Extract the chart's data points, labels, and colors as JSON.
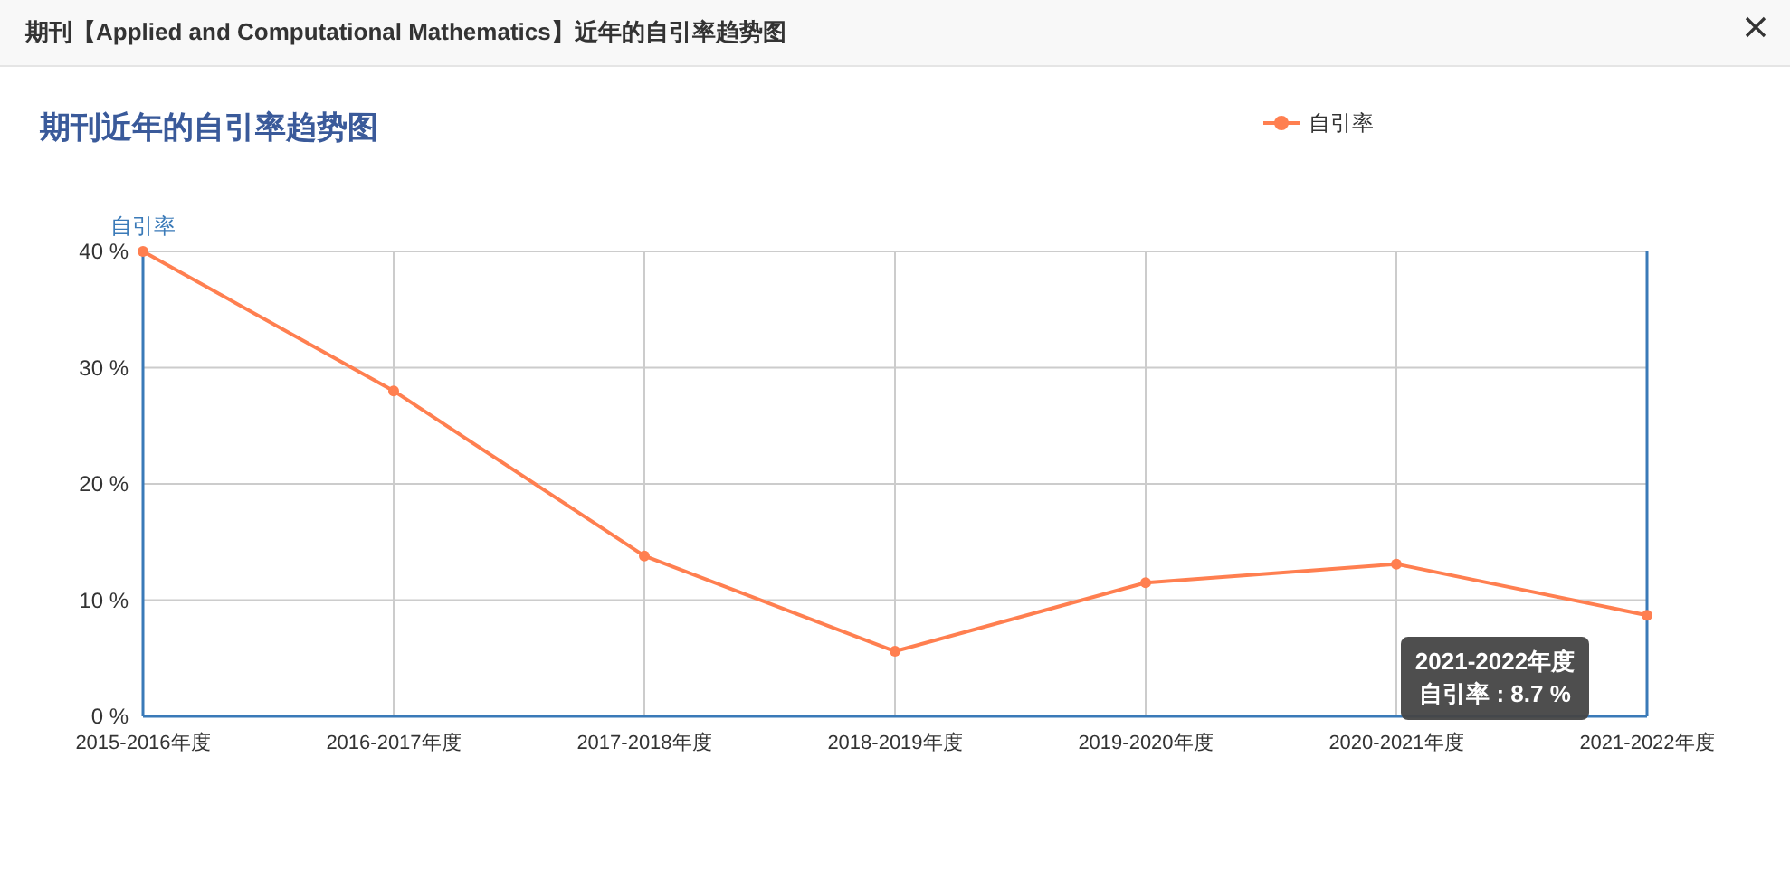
{
  "chart_data": {
    "type": "line",
    "title": "期刊【Applied and Computational Mathematics】近年的自引率趋势图",
    "subtitle": "期刊近年的自引率趋势图",
    "ylabel": "自引率",
    "categories": [
      "2015-2016年度",
      "2016-2017年度",
      "2017-2018年度",
      "2018-2019年度",
      "2019-2020年度",
      "2020-2021年度",
      "2021-2022年度"
    ],
    "series": [
      {
        "name": "自引率",
        "color": "#ff7f50",
        "values": [
          40,
          28.0,
          13.8,
          5.6,
          11.5,
          13.1,
          8.7
        ]
      }
    ],
    "ylim": [
      0,
      40
    ],
    "yticks": [
      {
        "value": 0,
        "label": "0 %"
      },
      {
        "value": 10,
        "label": "10 %"
      },
      {
        "value": 20,
        "label": "20 %"
      },
      {
        "value": 30,
        "label": "30 %"
      },
      {
        "value": 40,
        "label": "40 %"
      }
    ],
    "grid": true,
    "legend": "top right",
    "marker": "circle",
    "line_style": "solid",
    "annotations": [
      "2021-2022年度",
      "自引率 : 8.7 %"
    ]
  }
}
